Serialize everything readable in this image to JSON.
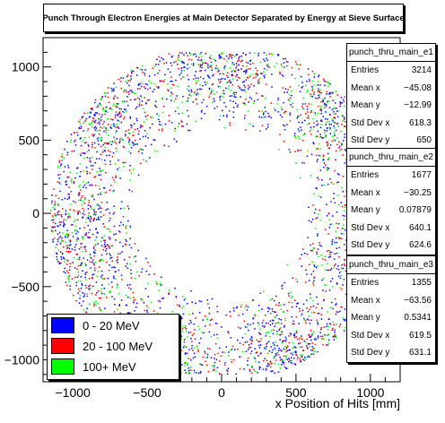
{
  "chart_data": {
    "type": "scatter",
    "title": "Punch Through Electron Energies at Main Detector Separated by Energy at Sieve Surface",
    "xlabel": "x Position of Hits [mm]",
    "ylabel": "",
    "xlim": [
      -1200,
      1200
    ],
    "ylim": [
      -1150,
      1200
    ],
    "xticks": [
      -1000,
      -500,
      0,
      500,
      1000
    ],
    "yticks": [
      -1000,
      -500,
      0,
      500,
      1000
    ],
    "grid": false,
    "legend_position": "bottom-left",
    "distribution": {
      "shape": "annulus",
      "inner_radius": 560,
      "outer_radius": 1150,
      "y_extent": [
        -1100,
        1100
      ],
      "lobes": 7,
      "lobe_angle_deg": 90
    },
    "series": [
      {
        "name": "0 - 20 MeV",
        "color": "#0000ff"
      },
      {
        "name": "20 - 100 MeV",
        "color": "#ff0000"
      },
      {
        "name": "100+ MeV",
        "color": "#00ff00"
      }
    ],
    "stats_boxes": [
      {
        "name": "punch_thru_main_e1",
        "rows": [
          [
            "Entries",
            "3214"
          ],
          [
            "Mean x",
            "−45.08"
          ],
          [
            "Mean y",
            "−12.99"
          ],
          [
            "Std Dev x",
            "618.3"
          ],
          [
            "Std Dev y",
            "650"
          ]
        ]
      },
      {
        "name": "punch_thru_main_e2",
        "rows": [
          [
            "Entries",
            "1677"
          ],
          [
            "Mean x",
            "−30.25"
          ],
          [
            "Mean y",
            "0.07879"
          ],
          [
            "Std Dev x",
            "640.1"
          ],
          [
            "Std Dev y",
            "624.6"
          ]
        ]
      },
      {
        "name": "punch_thru_main_e3",
        "rows": [
          [
            "Entries",
            "1355"
          ],
          [
            "Mean x",
            "−63.56"
          ],
          [
            "Mean y",
            "0.5341"
          ],
          [
            "Std Dev x",
            "619.5"
          ],
          [
            "Std Dev y",
            "631.1"
          ]
        ]
      }
    ]
  }
}
